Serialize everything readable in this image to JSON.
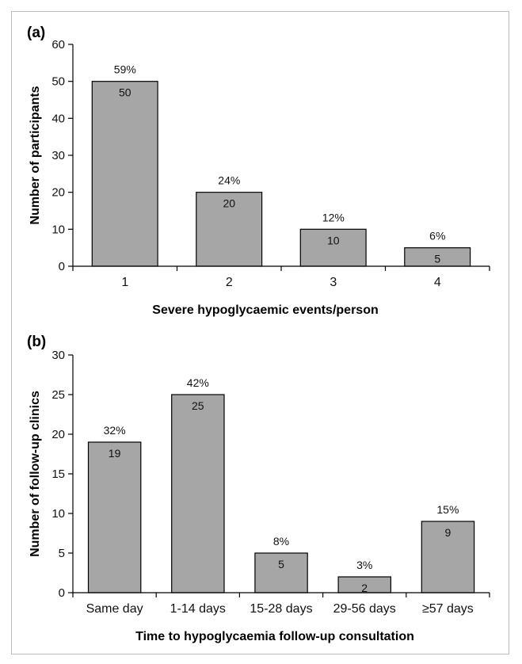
{
  "chart_data": [
    {
      "type": "bar",
      "panel_label": "(a)",
      "categories": [
        "1",
        "2",
        "3",
        "4"
      ],
      "values": [
        50,
        20,
        10,
        5
      ],
      "percent_labels": [
        "59%",
        "24%",
        "12%",
        "6%"
      ],
      "xlabel": "Severe hypoglycaemic events/person",
      "ylabel": "Number of participants",
      "ylim": [
        0,
        60
      ],
      "yticks": [
        0,
        10,
        20,
        30,
        40,
        50,
        60
      ],
      "bar_color": "#a6a6a6",
      "grid": false
    },
    {
      "type": "bar",
      "panel_label": "(b)",
      "categories": [
        "Same day",
        "1-14 days",
        "15-28 days",
        "29-56 days",
        "≥57 days"
      ],
      "values": [
        19,
        25,
        5,
        2,
        9
      ],
      "percent_labels": [
        "32%",
        "42%",
        "8%",
        "3%",
        "15%"
      ],
      "xlabel": "Time to hypoglycaemia follow-up consultation",
      "ylabel": "Number of follow-up clinics",
      "ylim": [
        0,
        30
      ],
      "yticks": [
        0,
        5,
        10,
        15,
        20,
        25,
        30
      ],
      "bar_color": "#a6a6a6",
      "grid": false
    }
  ]
}
